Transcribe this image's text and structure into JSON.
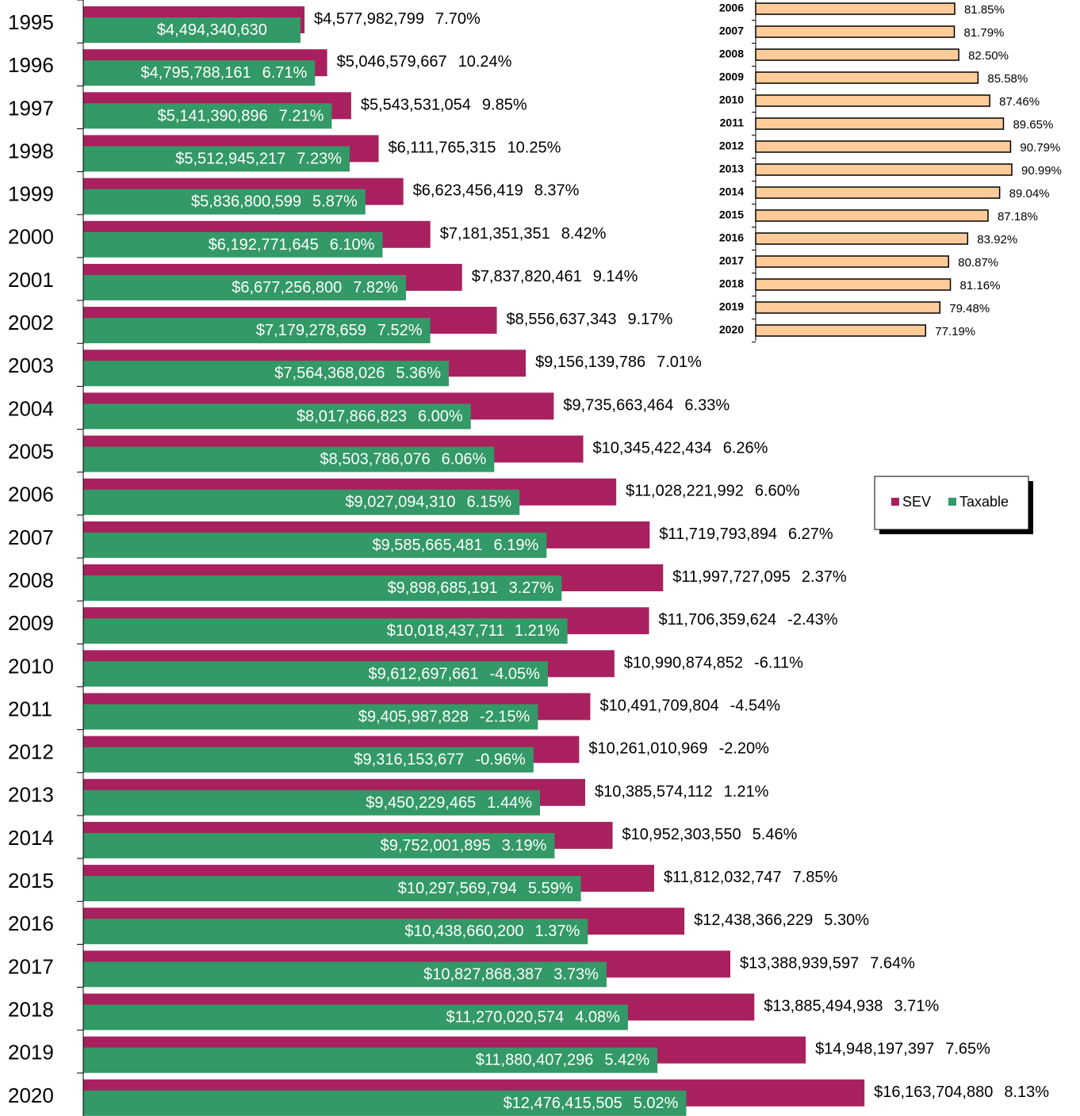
{
  "chart_data": [
    {
      "type": "hbar",
      "categories": [
        "1995",
        "1996",
        "1997",
        "1998",
        "1999",
        "2000",
        "2001",
        "2002",
        "2003",
        "2004",
        "2005",
        "2006",
        "2007",
        "2008",
        "2009",
        "2010",
        "2011",
        "2012",
        "2013",
        "2014",
        "2015",
        "2016",
        "2017",
        "2018",
        "2019",
        "2020"
      ],
      "xlim": [
        0,
        20000000000
      ],
      "legend": "right",
      "series": [
        {
          "name": "SEV",
          "color": "#a8215e",
          "values": [
            4577982799,
            5046579667,
            5543531054,
            6111765315,
            6623456419,
            7181351351,
            7837820461,
            8556637343,
            9156139786,
            9735663464,
            10345422434,
            11028221992,
            11719793894,
            11997727095,
            11706359624,
            10990874852,
            10491709804,
            10261010969,
            10385574112,
            10952303550,
            11812032747,
            12438366229,
            13388939597,
            13885494938,
            14948197397,
            16163704880
          ],
          "value_labels": [
            "$4,577,982,799",
            "$5,046,579,667",
            "$5,543,531,054",
            "$6,111,765,315",
            "$6,623,456,419",
            "$7,181,351,351",
            "$7,837,820,461",
            "$8,556,637,343",
            "$9,156,139,786",
            "$9,735,663,464",
            "$10,345,422,434",
            "$11,028,221,992",
            "$11,719,793,894",
            "$11,997,727,095",
            "$11,706,359,624",
            "$10,990,874,852",
            "$10,491,709,804",
            "$10,261,010,969",
            "$10,385,574,112",
            "$10,952,303,550",
            "$11,812,032,747",
            "$12,438,366,229",
            "$13,388,939,597",
            "$13,885,494,938",
            "$14,948,197,397",
            "$16,163,704,880"
          ],
          "changes": [
            7.7,
            10.24,
            9.85,
            10.25,
            8.37,
            8.42,
            9.14,
            9.17,
            7.01,
            6.33,
            6.26,
            6.6,
            6.27,
            2.37,
            -2.43,
            -6.11,
            -4.54,
            -2.2,
            1.21,
            5.46,
            7.85,
            5.3,
            7.64,
            3.71,
            7.65,
            8.13
          ],
          "change_labels": [
            "7.70%",
            "10.24%",
            "9.85%",
            "10.25%",
            "8.37%",
            "8.42%",
            "9.14%",
            "9.17%",
            "7.01%",
            "6.33%",
            "6.26%",
            "6.60%",
            "6.27%",
            "2.37%",
            "-2.43%",
            "-6.11%",
            "-4.54%",
            "-2.20%",
            "1.21%",
            "5.46%",
            "7.85%",
            "5.30%",
            "7.64%",
            "3.71%",
            "7.65%",
            "8.13%"
          ]
        },
        {
          "name": "Taxable",
          "color": "#339966",
          "values": [
            4494340630,
            4795788161,
            5141390896,
            5512945217,
            5836800599,
            6192771645,
            6677256800,
            7179278659,
            7564368026,
            8017866823,
            8503786076,
            9027094310,
            9585665481,
            9898685191,
            10018437711,
            9612697661,
            9405987828,
            9316153677,
            9450229465,
            9752001895,
            10297569794,
            10438660200,
            10827868387,
            11270020574,
            11880407296,
            12476415505
          ],
          "value_labels": [
            "$4,494,340,630",
            "$4,795,788,161",
            "$5,141,390,896",
            "$5,512,945,217",
            "$5,836,800,599",
            "$6,192,771,645",
            "$6,677,256,800",
            "$7,179,278,659",
            "$7,564,368,026",
            "$8,017,866,823",
            "$8,503,786,076",
            "$9,027,094,310",
            "$9,585,665,481",
            "$9,898,685,191",
            "$10,018,437,711",
            "$9,612,697,661",
            "$9,405,987,828",
            "$9,316,153,677",
            "$9,450,229,465",
            "$9,752,001,895",
            "$10,297,569,794",
            "$10,438,660,200",
            "$10,827,868,387",
            "$11,270,020,574",
            "$11,880,407,296",
            "$12,476,415,505"
          ],
          "changes": [
            null,
            6.71,
            7.21,
            7.23,
            5.87,
            6.1,
            7.82,
            7.52,
            5.36,
            6.0,
            6.06,
            6.15,
            6.19,
            3.27,
            1.21,
            -4.05,
            -2.15,
            -0.96,
            1.44,
            3.19,
            5.59,
            1.37,
            3.73,
            4.08,
            5.42,
            5.02
          ],
          "change_labels": [
            null,
            "6.71%",
            "7.21%",
            "7.23%",
            "5.87%",
            "6.10%",
            "7.82%",
            "7.52%",
            "5.36%",
            "6.00%",
            "6.06%",
            "6.15%",
            "6.19%",
            "3.27%",
            "1.21%",
            "-4.05%",
            "-2.15%",
            "-0.96%",
            "1.44%",
            "3.19%",
            "5.59%",
            "1.37%",
            "3.73%",
            "4.08%",
            "5.42%",
            "5.02%"
          ]
        }
      ]
    },
    {
      "type": "hbar-inset",
      "categories": [
        "2006",
        "2007",
        "2008",
        "2009",
        "2010",
        "2011",
        "2012",
        "2013",
        "2014",
        "2015",
        "2016",
        "2017",
        "2018",
        "2019",
        "2020"
      ],
      "values": [
        81.85,
        81.79,
        82.5,
        85.58,
        87.46,
        89.65,
        90.79,
        90.99,
        89.04,
        87.18,
        83.92,
        80.87,
        81.16,
        79.48,
        77.19
      ],
      "value_labels": [
        "81.85%",
        "81.79%",
        "82.50%",
        "85.58%",
        "87.46%",
        "89.65%",
        "90.79%",
        "90.99%",
        "89.04%",
        "87.18%",
        "83.92%",
        "80.87%",
        "81.16%",
        "79.48%",
        "77.19%"
      ],
      "xlim": [
        50,
        100
      ],
      "color": "#ffcc99"
    }
  ]
}
